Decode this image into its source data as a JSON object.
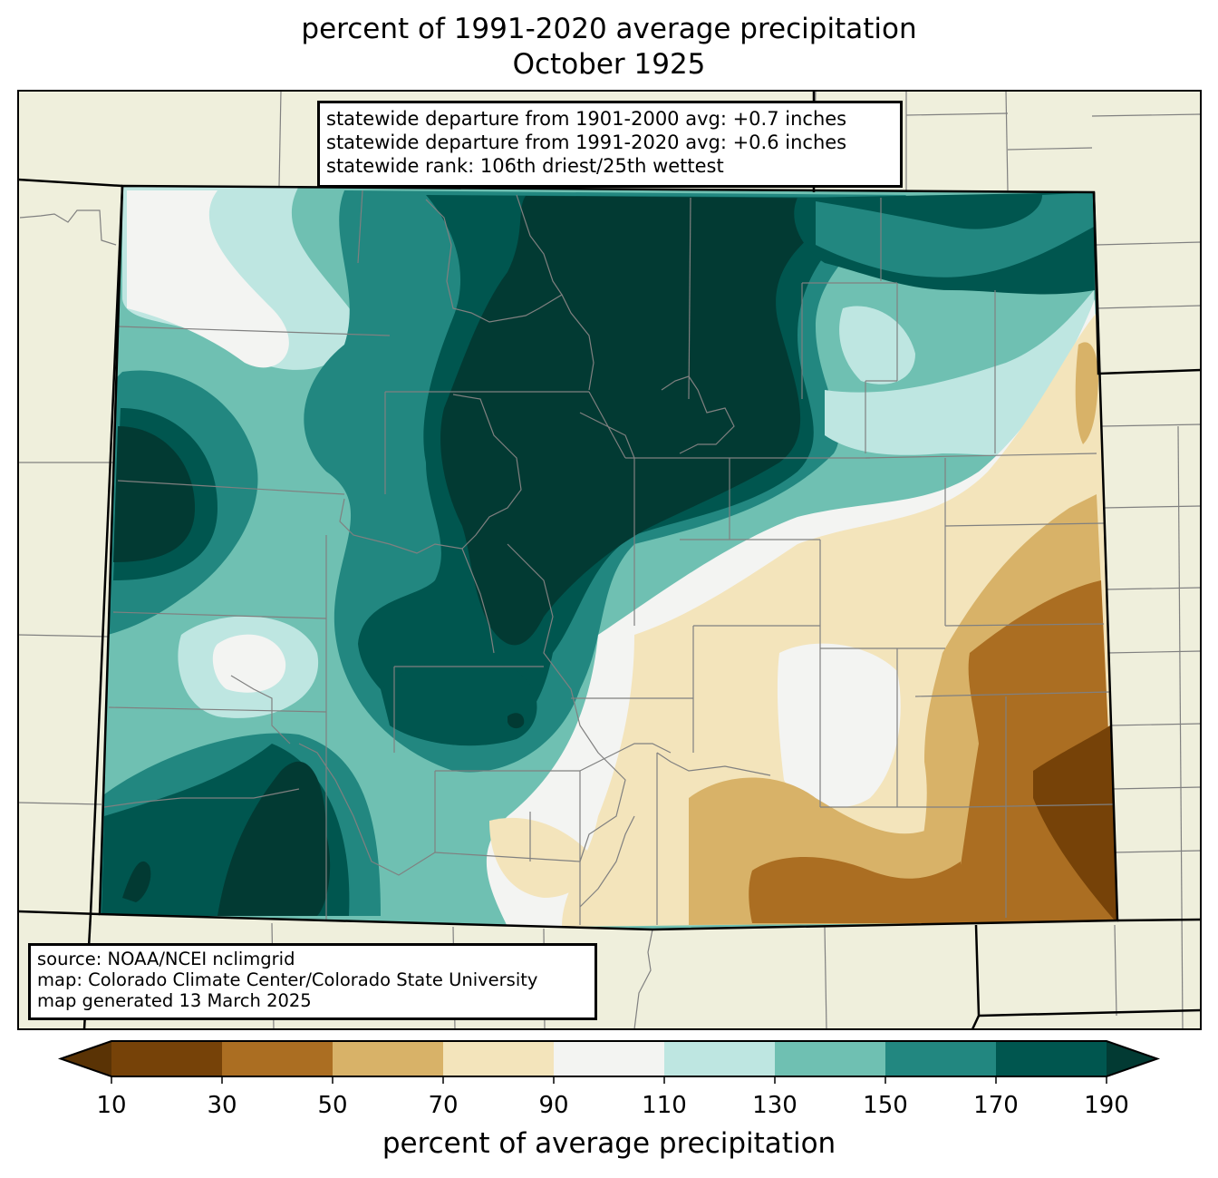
{
  "title": {
    "line1": "percent of 1991-2020 average precipitation",
    "line2": "October 1925"
  },
  "stats": [
    "statewide departure from 1901-2000 avg: +0.7 inches",
    "statewide departure from 1991-2020 avg: +0.6 inches",
    "statewide rank: 106th driest/25th wettest"
  ],
  "source": [
    "source: NOAA/NCEI nclimgrid",
    "map: Colorado Climate Center/Colorado State University",
    "map generated 13 March 2025"
  ],
  "colorbar": {
    "label": "percent of average precipitation",
    "ticks": [
      "10",
      "30",
      "50",
      "70",
      "90",
      "110",
      "130",
      "150",
      "170",
      "190"
    ],
    "colors": [
      "#5a3305",
      "#764208",
      "#ab6e22",
      "#d8b268",
      "#f3e4bb",
      "#f3f4f2",
      "#bee6e1",
      "#6fc0b2",
      "#228780",
      "#00564f",
      "#023a33"
    ]
  },
  "map_colors": {
    "land": "#efefdc",
    "border": "#000000",
    "county": "#808080"
  }
}
